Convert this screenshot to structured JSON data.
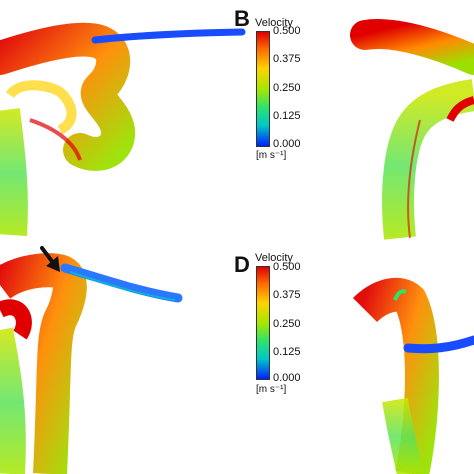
{
  "panels": [
    {
      "letter": "B",
      "colorbar": {
        "title": "Velocity",
        "ticks": [
          "0.500",
          "0.375",
          "0.250",
          "0.125",
          "0.000"
        ],
        "unit": "[m s⁻¹]"
      }
    },
    {
      "letter": "D",
      "colorbar": {
        "title": "Velocity",
        "ticks": [
          "0.500",
          "0.375",
          "0.250",
          "0.125",
          "0.000"
        ],
        "unit": "[m s⁻¹]"
      }
    }
  ],
  "colors": {
    "high": "#e00000",
    "mid_high": "#ffd200",
    "mid": "#a8e600",
    "mid_low": "#2ee36a",
    "low": "#0020ff"
  }
}
